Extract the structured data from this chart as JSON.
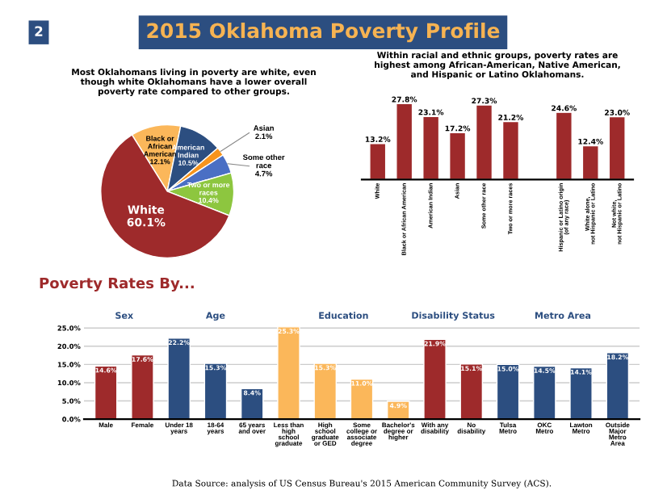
{
  "chart_data": [
    {
      "type": "pie",
      "title": "2015 Oklahoma Poverty Profile",
      "subtitle": "Most Oklahomans living in poverty are white, even\nthough white Oklahomans have a lower overall\npoverty rate compared to other groups.",
      "annotations": [
        "2"
      ],
      "categories": [
        "Black or\nAfrican\nAmerican\n12.1%",
        "American\nIndian\n10.5%",
        "Asian\n2.1%",
        "Some other\nrace\n4.7%",
        "Two or more\nraces\n10.4%",
        "White\n60.1%"
      ],
      "values": [
        12.1,
        10.5,
        2.1,
        4.7,
        10.4,
        60.1
      ],
      "colors": [
        "#fbb75a",
        "#2c4e80",
        "#f7941d",
        "#4a6fc4",
        "#8dc63f",
        "#9e2a2b"
      ]
    },
    {
      "type": "bar",
      "title": "Within racial and ethnic groups, poverty rates are\nhighest among African-American, Native American,\nand Hispanic or Latino Oklahomans.",
      "categories": [
        "White",
        "Black or African American",
        "American Indian",
        "Asian",
        "Some other race",
        "Two or more races",
        null,
        "Hispanic or Latino origin\n(of any race)",
        "White alone,\nnot Hispanic or Latino",
        "Not white,\nnot Hispanic or Latino"
      ],
      "values": [
        13.2,
        27.8,
        23.1,
        17.2,
        27.3,
        21.2,
        null,
        24.6,
        12.4,
        23.0
      ],
      "value_labels": [
        "13.2%",
        "27.8%",
        "23.1%",
        "17.2%",
        "27.3%",
        "21.2%",
        null,
        "24.6%",
        "12.4%",
        "23.0%"
      ],
      "color": "#9e2a2b",
      "tick_labels": "x"
    },
    {
      "type": "bar",
      "title": "Poverty Rates By...",
      "annotations": [
        "Sex",
        "Age",
        "Education",
        "Disability Status",
        "Metro Area",
        "Data Source: analysis of US Census Bureau's 2015 American Community Survey (ACS)."
      ],
      "categories": [
        "Male",
        "Female",
        "Under 18\nyears",
        "18-64\nyears",
        "65 years\nand over",
        "Less than\nhigh\nschool\ngraduate",
        "High\nschool\ngraduate\nor GED",
        "Some\ncollege or\nassociate\ndegree",
        "Bachelor's\ndegree or\nhigher",
        "With any\ndisability",
        "No\ndisability",
        "Tulsa\nMetro",
        "OKC\nMetro",
        "Lawton\nMetro",
        "Outside\nMajor\nMetro\nArea"
      ],
      "values": [
        14.6,
        17.6,
        22.2,
        15.3,
        8.4,
        25.3,
        15.3,
        11.0,
        4.9,
        21.9,
        15.1,
        15.0,
        14.5,
        14.1,
        18.2
      ],
      "value_labels": [
        "14.6%",
        "17.6%",
        "22.2%",
        "15.3%",
        "8.4%",
        "25.3%",
        "15.3%",
        "11.0%",
        "4.9%",
        "21.9%",
        "15.1%",
        "15.0%",
        "14.5%",
        "14.1%",
        "18.2%"
      ],
      "colors": [
        "#9e2a2b",
        "#9e2a2b",
        "#2c4e80",
        "#2c4e80",
        "#2c4e80",
        "#fbb75a",
        "#fbb75a",
        "#fbb75a",
        "#fbb75a",
        "#9e2a2b",
        "#9e2a2b",
        "#2c4e80",
        "#2c4e80",
        "#2c4e80",
        "#2c4e80"
      ],
      "ylim": [
        0,
        26
      ],
      "yticks": [
        {
          "value": 0,
          "label": "0.0%"
        },
        {
          "value": 5,
          "label": "5.0%"
        },
        {
          "value": 10,
          "label": "10.0%"
        },
        {
          "value": 15,
          "label": "15.0%"
        },
        {
          "value": 20,
          "label": "20.0%"
        },
        {
          "value": 25,
          "label": "25.0%"
        }
      ],
      "grid": "y"
    }
  ]
}
